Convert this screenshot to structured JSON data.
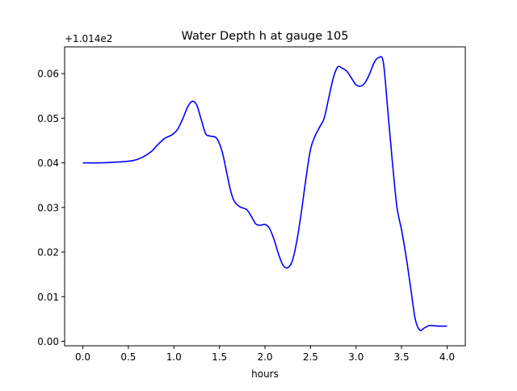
{
  "chart_data": {
    "type": "line",
    "title": "Water Depth h at gauge 105",
    "xlabel": "hours",
    "ylabel": "",
    "offset_label": "+1.014e2",
    "xlim": [
      -0.2,
      4.2
    ],
    "ylim": [
      -0.001,
      0.066
    ],
    "xticks": [
      0.0,
      0.5,
      1.0,
      1.5,
      2.0,
      2.5,
      3.0,
      3.5,
      4.0
    ],
    "xtick_labels": [
      "0.0",
      "0.5",
      "1.0",
      "1.5",
      "2.0",
      "2.5",
      "3.0",
      "3.5",
      "4.0"
    ],
    "yticks": [
      0.0,
      0.01,
      0.02,
      0.03,
      0.04,
      0.05,
      0.06
    ],
    "ytick_labels": [
      "0.00",
      "0.01",
      "0.02",
      "0.03",
      "0.04",
      "0.05",
      "0.06"
    ],
    "grid": false,
    "series": [
      {
        "color": "#0000ff",
        "x": [
          0.0,
          0.2,
          0.4,
          0.55,
          0.65,
          0.75,
          0.82,
          0.9,
          0.98,
          1.04,
          1.1,
          1.15,
          1.2,
          1.25,
          1.3,
          1.35,
          1.4,
          1.47,
          1.53,
          1.58,
          1.62,
          1.66,
          1.72,
          1.8,
          1.85,
          1.9,
          1.95,
          2.0,
          2.05,
          2.1,
          2.15,
          2.2,
          2.25,
          2.3,
          2.35,
          2.4,
          2.45,
          2.5,
          2.55,
          2.6,
          2.65,
          2.7,
          2.75,
          2.8,
          2.85,
          2.9,
          2.95,
          3.0,
          3.05,
          3.1,
          3.15,
          3.2,
          3.25,
          3.3,
          3.35,
          3.4,
          3.45,
          3.5,
          3.55,
          3.6,
          3.65,
          3.7,
          3.75,
          3.8,
          3.85,
          3.9,
          3.95,
          4.0
        ],
        "y": [
          0.04,
          0.04,
          0.0402,
          0.0405,
          0.0412,
          0.0425,
          0.044,
          0.0455,
          0.0463,
          0.0475,
          0.05,
          0.0525,
          0.0538,
          0.053,
          0.0497,
          0.0465,
          0.046,
          0.0455,
          0.0425,
          0.0378,
          0.034,
          0.0315,
          0.0302,
          0.0295,
          0.028,
          0.0263,
          0.026,
          0.0262,
          0.0253,
          0.0228,
          0.0195,
          0.017,
          0.0165,
          0.018,
          0.0225,
          0.029,
          0.0365,
          0.043,
          0.046,
          0.048,
          0.05,
          0.0545,
          0.059,
          0.0615,
          0.0612,
          0.0605,
          0.059,
          0.0575,
          0.0572,
          0.058,
          0.06,
          0.0625,
          0.0636,
          0.0625,
          0.0515,
          0.04,
          0.03,
          0.025,
          0.019,
          0.012,
          0.005,
          0.0025,
          0.003,
          0.0035,
          0.0035,
          0.0034,
          0.0034,
          0.0034
        ]
      }
    ]
  }
}
